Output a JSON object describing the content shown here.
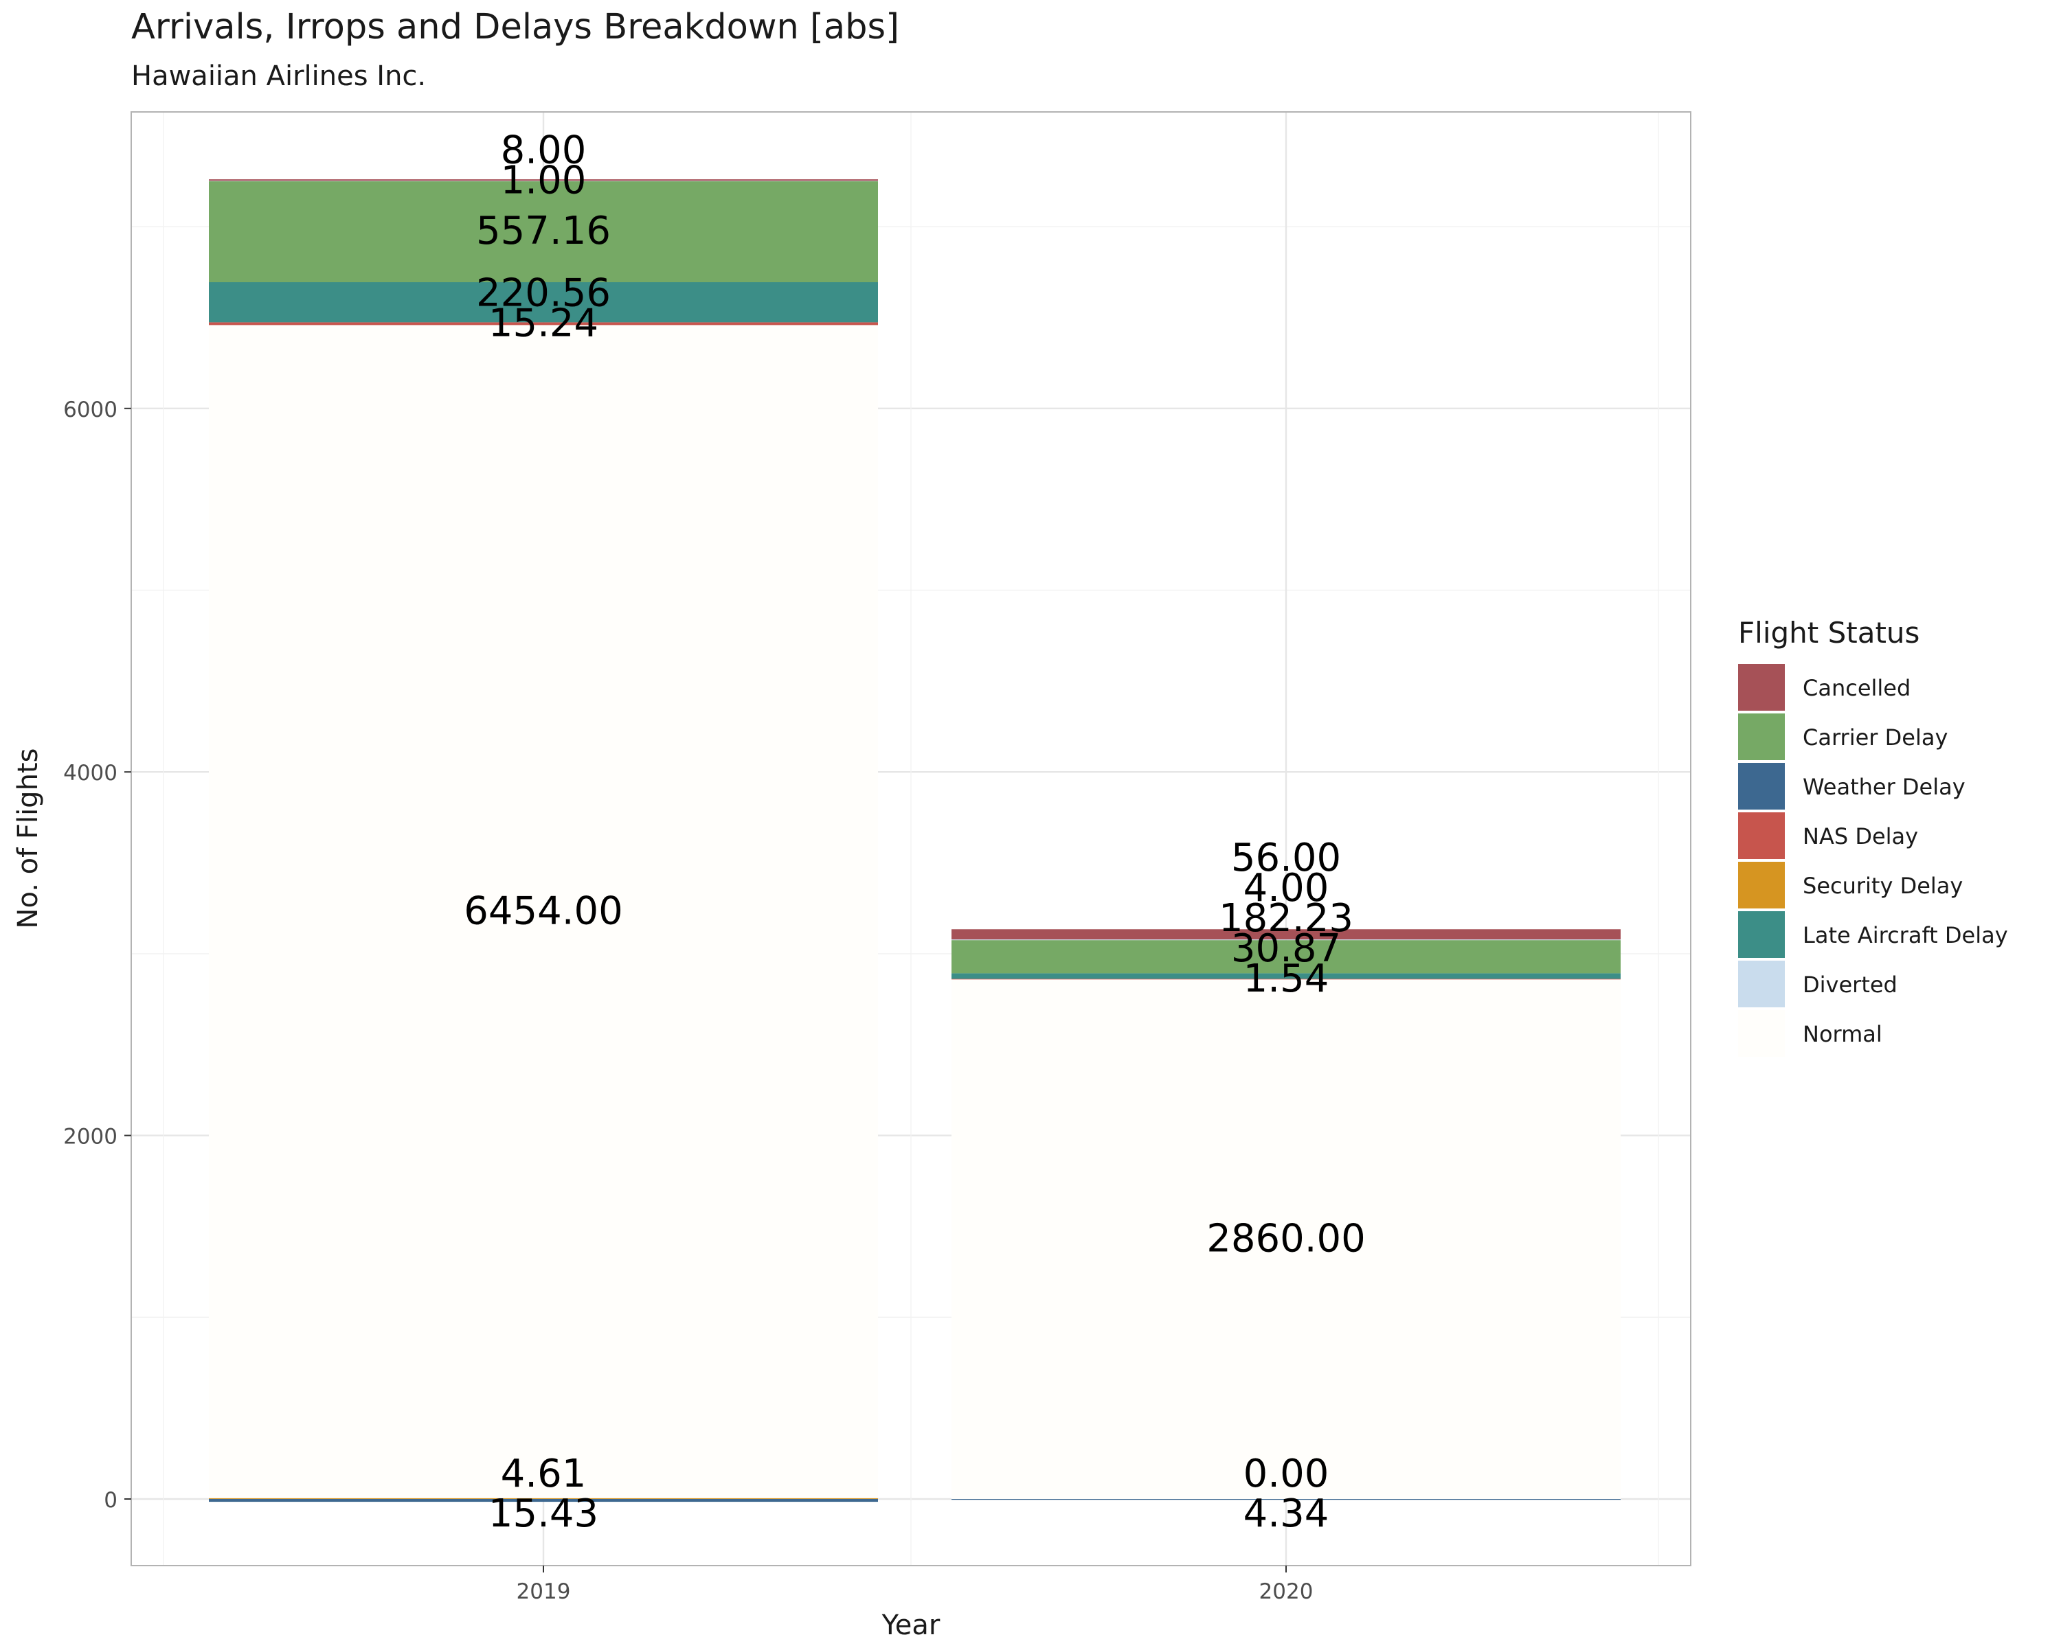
{
  "chart_data": {
    "type": "bar",
    "stacked": true,
    "title": "Arrivals, Irrops and Delays Breakdown [abs]",
    "subtitle": "Hawaiian Airlines Inc.",
    "xlabel": "Year",
    "ylabel": "No. of Flights",
    "categories": [
      "2019",
      "2020"
    ],
    "ylim": [
      -370,
      7620
    ],
    "yticks": [
      0,
      2000,
      4000,
      6000
    ],
    "grid": true,
    "legend": {
      "title": "Flight Status",
      "position": "right",
      "entries": [
        "Cancelled",
        "Carrier Delay",
        "Weather Delay",
        "NAS Delay",
        "Security Delay",
        "Late Aircraft Delay",
        "Diverted",
        "Normal"
      ]
    },
    "colors": {
      "Cancelled": "#a65157",
      "Carrier Delay": "#76a965",
      "Weather Delay": "#3d6890",
      "NAS Delay": "#c7554d",
      "Security Delay": "#d69521",
      "Late Aircraft Delay": "#3c8e87",
      "Diverted": "#c9dced",
      "Normal": "#fffefb"
    },
    "stack_order": [
      "Weather Delay",
      "Security Delay",
      "Normal",
      "NAS Delay",
      "Late Aircraft Delay",
      "Carrier Delay",
      "Diverted",
      "Cancelled"
    ],
    "series": [
      {
        "name": "Cancelled",
        "values": [
          8.0,
          56.0
        ],
        "labels": [
          "8.00",
          "56.00"
        ]
      },
      {
        "name": "Carrier Delay",
        "values": [
          557.16,
          182.23
        ],
        "labels": [
          "557.16",
          "182.23"
        ]
      },
      {
        "name": "Weather Delay",
        "values": [
          15.43,
          4.34
        ],
        "labels": [
          "15.43",
          "4.34"
        ]
      },
      {
        "name": "NAS Delay",
        "values": [
          15.24,
          1.54
        ],
        "labels": [
          "15.24",
          "1.54"
        ]
      },
      {
        "name": "Security Delay",
        "values": [
          4.61,
          0.0
        ],
        "labels": [
          "4.61",
          "0.00"
        ]
      },
      {
        "name": "Late Aircraft Delay",
        "values": [
          220.56,
          30.87
        ],
        "labels": [
          "220.56",
          "30.87"
        ]
      },
      {
        "name": "Diverted",
        "values": [
          1.0,
          4.0
        ],
        "labels": [
          "1.00",
          "4.00"
        ]
      },
      {
        "name": "Normal",
        "values": [
          6454.0,
          2860.0
        ],
        "labels": [
          "6454.00",
          "2860.00"
        ]
      }
    ]
  }
}
